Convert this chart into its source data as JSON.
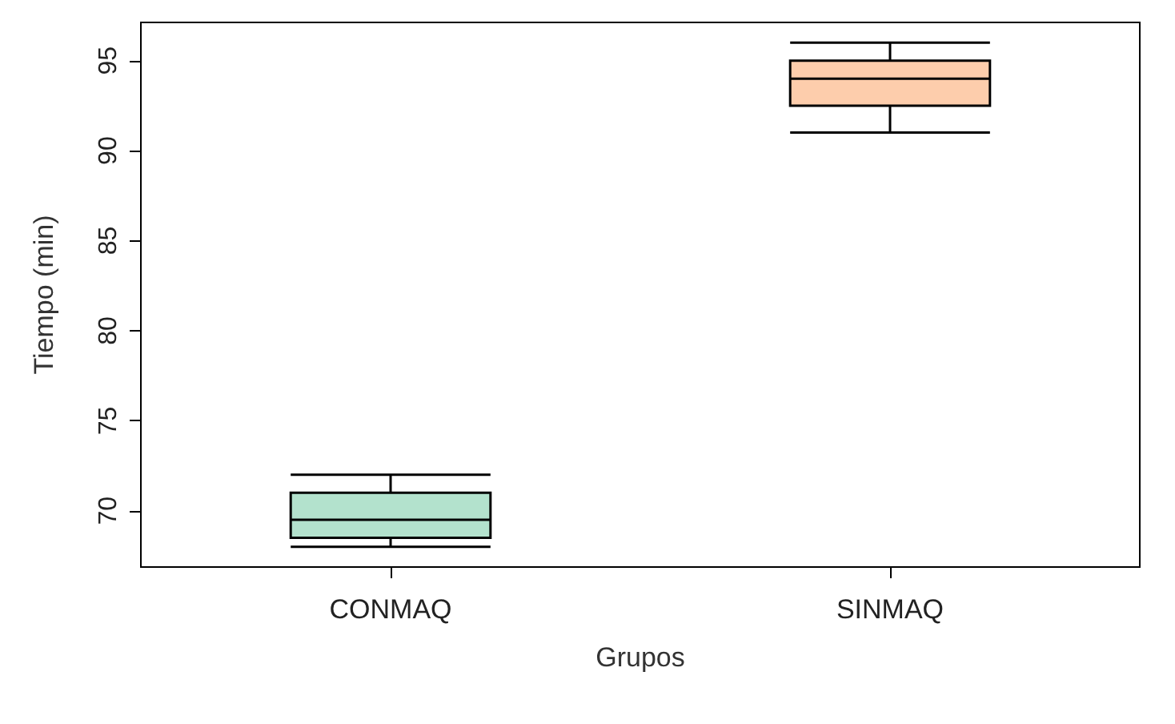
{
  "chart_data": {
    "type": "box",
    "xlabel": "Grupos",
    "ylabel": "Tiempo (min)",
    "categories": [
      "CONMAQ",
      "SINMAQ"
    ],
    "colors": [
      "#b3e2cd",
      "#fdcdac"
    ],
    "boxes": [
      {
        "low": 68,
        "q1": 68.5,
        "median": 69.5,
        "q3": 71,
        "high": 72
      },
      {
        "low": 91,
        "q1": 92.5,
        "median": 94,
        "q3": 95,
        "high": 96
      }
    ],
    "ylim": [
      66.88,
      97.12
    ],
    "yticks": [
      70,
      75,
      80,
      85,
      90,
      95
    ],
    "grid": false
  }
}
